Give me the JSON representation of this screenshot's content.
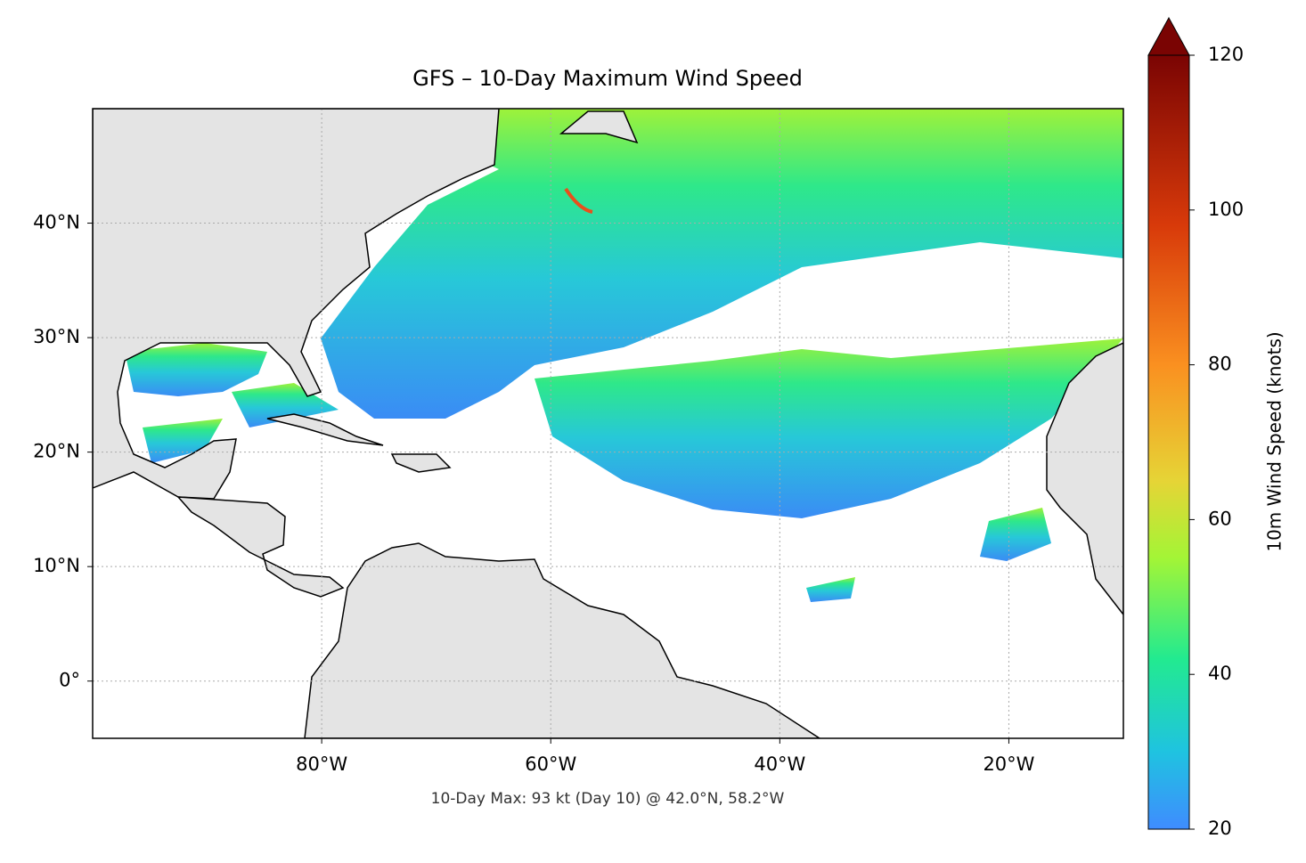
{
  "chart_data": {
    "type": "map",
    "title": "GFS – 10-Day Maximum Wind Speed",
    "annotation": "10-Day Max: 93 kt (Day 10) @ 42.0°N, 58.2°W",
    "xlim": [
      -100,
      -10
    ],
    "ylim": [
      -5,
      50
    ],
    "xticks": [
      {
        "value": -80,
        "label": "80°W"
      },
      {
        "value": -60,
        "label": "60°W"
      },
      {
        "value": -40,
        "label": "40°W"
      },
      {
        "value": -20,
        "label": "20°W"
      }
    ],
    "yticks": [
      {
        "value": 0,
        "label": "0°"
      },
      {
        "value": 10,
        "label": "10°N"
      },
      {
        "value": 20,
        "label": "20°N"
      },
      {
        "value": 30,
        "label": "30°N"
      },
      {
        "value": 40,
        "label": "40°N"
      }
    ],
    "grid": true,
    "colorbar": {
      "label": "10m Wind Speed (knots)",
      "lim": [
        20,
        120
      ],
      "ticks": [
        20,
        40,
        60,
        80,
        100,
        120
      ]
    }
  }
}
